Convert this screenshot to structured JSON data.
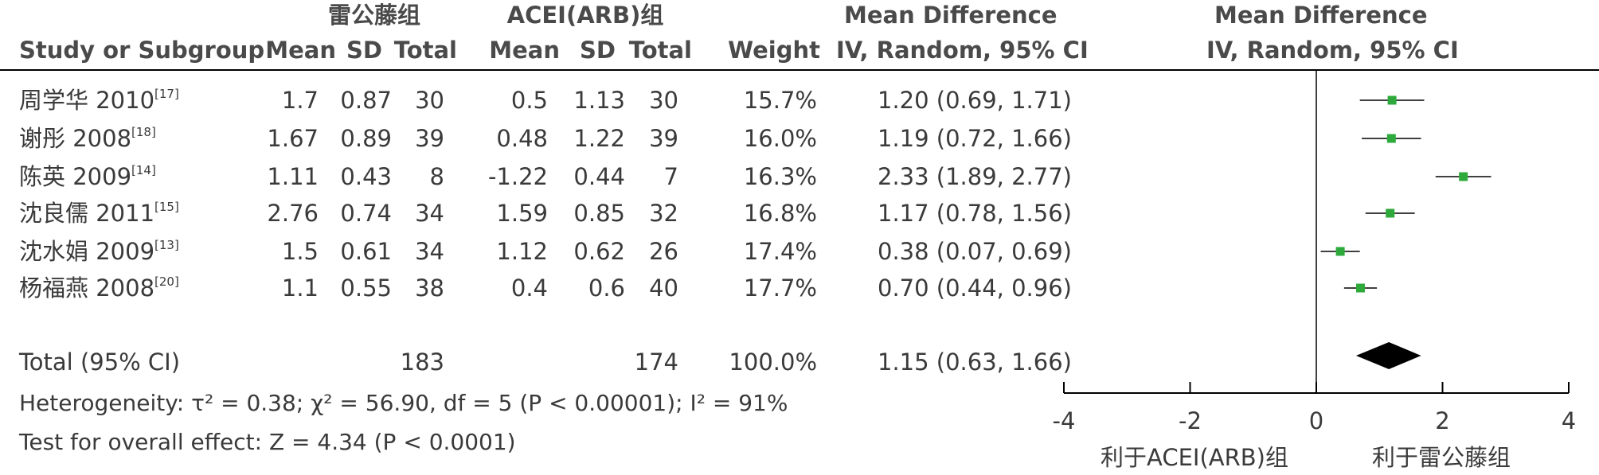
{
  "header": {
    "group1": "雷公藤组",
    "group2": "ACEI(ARB)组",
    "md_title": "Mean Difference",
    "plot_title": "Mean Difference",
    "study_col": "Study or Subgroup",
    "mean1": "Mean",
    "sd1": "SD",
    "total1": "Total",
    "mean2": "Mean",
    "sd2": "SD",
    "total2": "Total",
    "weight": "Weight",
    "md_method": "IV, Random, 95% CI",
    "plot_method": "IV, Random, 95% CI"
  },
  "studies": [
    {
      "name": "周学华 2010",
      "ref": "[17]",
      "mean1": "1.7",
      "sd1": "0.87",
      "total1": "30",
      "mean2": "0.5",
      "sd2": "1.13",
      "total2": "30",
      "weight": "15.7%",
      "ci": "1.20 (0.69, 1.71)"
    },
    {
      "name": "谢彤 2008",
      "ref": "[18]",
      "mean1": "1.67",
      "sd1": "0.89",
      "total1": "39",
      "mean2": "0.48",
      "sd2": "1.22",
      "total2": "39",
      "weight": "16.0%",
      "ci": "1.19 (0.72, 1.66)"
    },
    {
      "name": "陈英 2009",
      "ref": "[14]",
      "mean1": "1.11",
      "sd1": "0.43",
      "total1": "8",
      "mean2": "-1.22",
      "sd2": "0.44",
      "total2": "7",
      "weight": "16.3%",
      "ci": "2.33 (1.89, 2.77)"
    },
    {
      "name": "沈良儒 2011",
      "ref": "[15]",
      "mean1": "2.76",
      "sd1": "0.74",
      "total1": "34",
      "mean2": "1.59",
      "sd2": "0.85",
      "total2": "32",
      "weight": "16.8%",
      "ci": "1.17 (0.78, 1.56)"
    },
    {
      "name": "沈水娟 2009",
      "ref": "[13]",
      "mean1": "1.5",
      "sd1": "0.61",
      "total1": "34",
      "mean2": "1.12",
      "sd2": "0.62",
      "total2": "26",
      "weight": "17.4%",
      "ci": "0.38 (0.07, 0.69)"
    },
    {
      "name": "杨福燕 2008",
      "ref": "[20]",
      "mean1": "1.1",
      "sd1": "0.55",
      "total1": "38",
      "mean2": "0.4",
      "sd2": "0.6",
      "total2": "40",
      "weight": "17.7%",
      "ci": "0.70 (0.44, 0.96)"
    }
  ],
  "total": {
    "label": "Total (95% CI)",
    "total1": "183",
    "total2": "174",
    "weight": "100.0%",
    "ci": "1.15 (0.63, 1.66)"
  },
  "footer": {
    "heterogeneity": "Heterogeneity: τ² = 0.38; χ² = 56.90, df = 5 (P < 0.00001); I² = 91%",
    "overall": "Test for overall effect: Z = 4.34 (P < 0.0001)"
  },
  "axis": {
    "left_label": "利于ACEI(ARB)组",
    "right_label": "利于雷公藤组"
  },
  "colors": {
    "square": "#2eaa3c",
    "diamond": "#000000",
    "line": "#000000",
    "text": "#3a3a3a"
  },
  "chart_data": {
    "type": "forest",
    "xlim": [
      -4,
      4
    ],
    "ticks": [
      -4,
      -2,
      0,
      2,
      4
    ],
    "tick_labels": [
      "-4",
      "-2",
      "0",
      "2",
      "4"
    ],
    "studies": [
      {
        "name": "周学华 2010",
        "md": 1.2,
        "lo": 0.69,
        "hi": 1.71,
        "weight": 15.7
      },
      {
        "name": "谢彤 2008",
        "md": 1.19,
        "lo": 0.72,
        "hi": 1.66,
        "weight": 16.0
      },
      {
        "name": "陈英 2009",
        "md": 2.33,
        "lo": 1.89,
        "hi": 2.77,
        "weight": 16.3
      },
      {
        "name": "沈良儒 2011",
        "md": 1.17,
        "lo": 0.78,
        "hi": 1.56,
        "weight": 16.8
      },
      {
        "name": "沈水娟 2009",
        "md": 0.38,
        "lo": 0.07,
        "hi": 0.69,
        "weight": 17.4
      },
      {
        "name": "杨福燕 2008",
        "md": 0.7,
        "lo": 0.44,
        "hi": 0.96,
        "weight": 17.7
      }
    ],
    "pooled": {
      "md": 1.15,
      "lo": 0.63,
      "hi": 1.66
    }
  }
}
